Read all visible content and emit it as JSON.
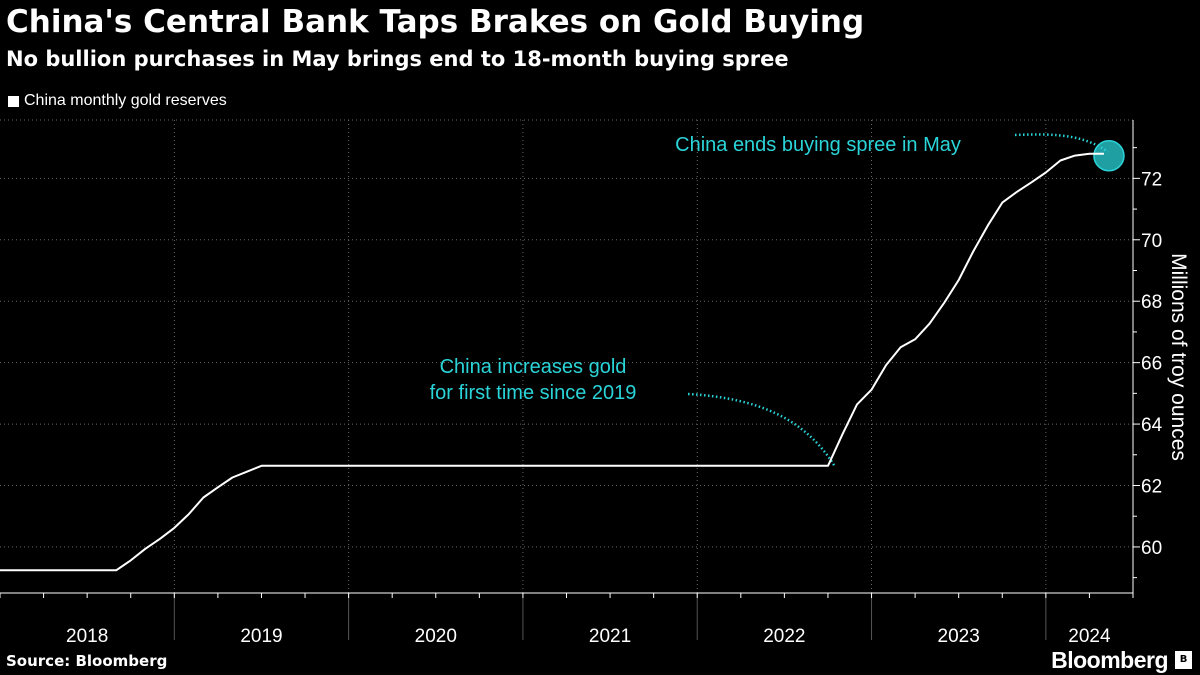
{
  "title": "China's Central Bank Taps Brakes on Gold Buying",
  "subtitle": "No bullion purchases in May brings end to 18-month buying spree",
  "legend_label": "China monthly gold reserves",
  "source": "Source: Bloomberg",
  "brand": "Bloomberg",
  "colors": {
    "background": "#000000",
    "line": "#ffffff",
    "accent": "#2ad4d8",
    "grid": "#666666"
  },
  "chart_data": {
    "type": "line",
    "title": "China's Central Bank Taps Brakes on Gold Buying",
    "subtitle": "No bullion purchases in May brings end to 18-month buying spree",
    "ylabel": "Millions of troy ounces",
    "xlabel": "",
    "ylim": [
      58.5,
      73.9
    ],
    "y_ticks": [
      60,
      62,
      64,
      66,
      68,
      70,
      72
    ],
    "grid": true,
    "legend_position": "top-left",
    "year_labels": [
      "2018",
      "2019",
      "2020",
      "2021",
      "2022",
      "2023",
      "2024"
    ],
    "x_range": [
      "2018-01",
      "2024-07"
    ],
    "series": [
      {
        "name": "China monthly gold reserves",
        "x": [
          "2018-01",
          "2018-09",
          "2018-10",
          "2018-11",
          "2018-12",
          "2019-01",
          "2019-02",
          "2019-03",
          "2019-04",
          "2019-05",
          "2019-06",
          "2019-07",
          "2019-08",
          "2019-09",
          "2022-10",
          "2022-11",
          "2022-12",
          "2023-01",
          "2023-02",
          "2023-03",
          "2023-04",
          "2023-05",
          "2023-06",
          "2023-07",
          "2023-08",
          "2023-09",
          "2023-10",
          "2023-11",
          "2023-12",
          "2024-01",
          "2024-02",
          "2024-03",
          "2024-04",
          "2024-05"
        ],
        "values": [
          59.24,
          59.24,
          59.56,
          59.94,
          60.26,
          60.62,
          61.07,
          61.61,
          61.94,
          62.26,
          62.45,
          62.64,
          62.64,
          62.64,
          62.64,
          63.67,
          64.64,
          65.12,
          65.92,
          66.5,
          66.76,
          67.27,
          67.95,
          68.69,
          69.62,
          70.46,
          71.21,
          71.56,
          71.87,
          72.19,
          72.58,
          72.74,
          72.8,
          72.8
        ]
      }
    ],
    "annotations": [
      {
        "text_lines": [
          "China increases gold",
          "for first time since 2019"
        ],
        "x": "2022-11",
        "y": 62.64
      },
      {
        "text_lines": [
          "China ends buying spree in May"
        ],
        "x": "2024-05",
        "y": 72.8
      }
    ]
  }
}
